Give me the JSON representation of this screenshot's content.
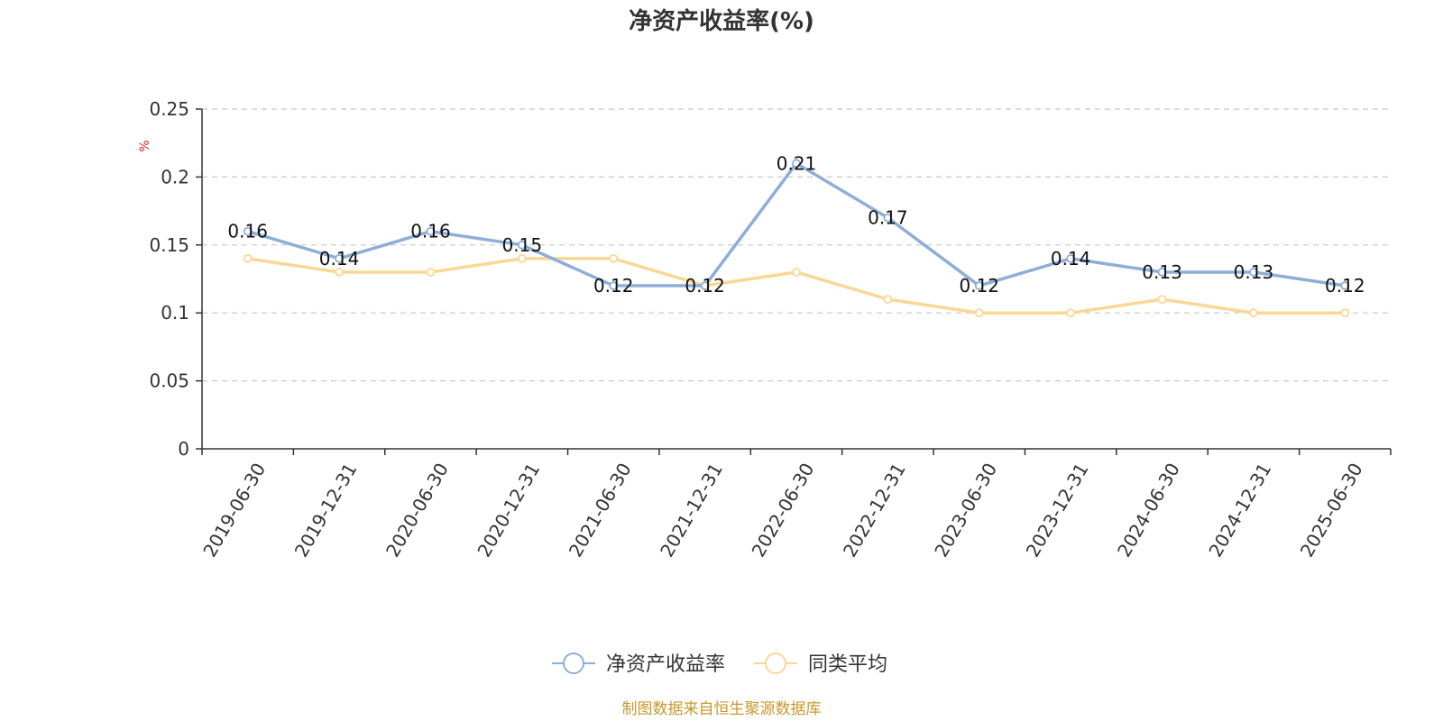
{
  "chart_data": {
    "type": "line",
    "title": "净资产收益率(%)",
    "ylabel": "%",
    "xlabel": "",
    "categories": [
      "2019-06-30",
      "2019-12-31",
      "2020-06-30",
      "2020-12-31",
      "2021-06-30",
      "2021-12-31",
      "2022-06-30",
      "2022-12-31",
      "2023-06-30",
      "2023-12-31",
      "2024-06-30",
      "2024-12-31",
      "2025-06-30"
    ],
    "series": [
      {
        "name": "净资产收益率",
        "values": [
          0.16,
          0.14,
          0.16,
          0.15,
          0.12,
          0.12,
          0.21,
          0.17,
          0.12,
          0.14,
          0.13,
          0.13,
          0.12
        ],
        "color": "#8eaed8",
        "show_labels": true
      },
      {
        "name": "同类平均",
        "values": [
          0.14,
          0.13,
          0.13,
          0.14,
          0.14,
          0.12,
          0.13,
          0.11,
          0.1,
          0.1,
          0.11,
          0.1,
          0.1
        ],
        "color": "#fbd795",
        "show_labels": false
      }
    ],
    "ylim": [
      0,
      0.25
    ],
    "yticks": [
      "0",
      "0.05",
      "0.1",
      "0.15",
      "0.2",
      "0.25"
    ],
    "grid": true,
    "legend_position": "bottom-center"
  },
  "colors": {
    "unit_label": "#e02020",
    "source_text": "#c9982a",
    "axis": "#333333",
    "grid": "#c8c8c8"
  },
  "source": "制图数据来自恒生聚源数据库"
}
